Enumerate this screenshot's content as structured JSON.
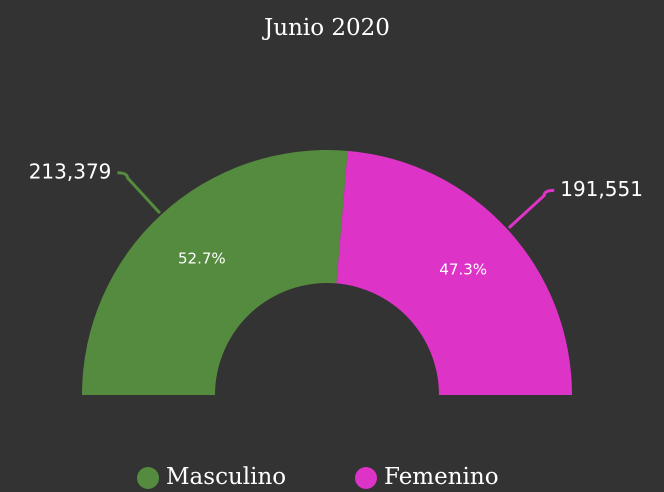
{
  "chart_data": {
    "type": "pie",
    "title": "Junio 2020",
    "categories": [
      "Masculino",
      "Femenino"
    ],
    "values": [
      213379,
      191551
    ],
    "value_labels": [
      "213,379",
      "191,551"
    ],
    "percent_labels": [
      "52.7%",
      "47.3%"
    ],
    "colors": [
      "#558b3f",
      "#dd33c7"
    ]
  }
}
